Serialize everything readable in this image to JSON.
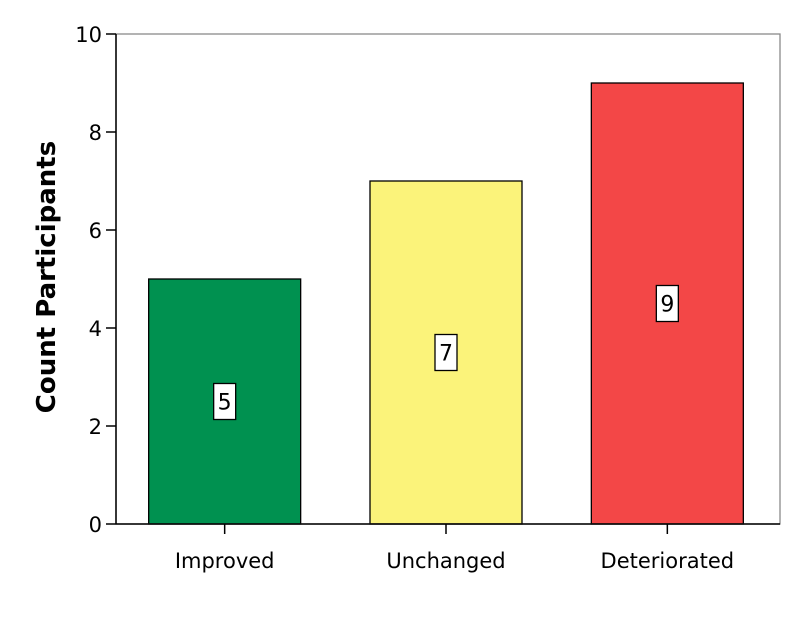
{
  "chart_data": {
    "type": "bar",
    "title": "",
    "xlabel": "",
    "ylabel": "Count Participants",
    "categories": [
      "Improved",
      "Unchanged",
      "Deteriorated"
    ],
    "values": [
      5,
      7,
      9
    ],
    "data_labels": [
      "5",
      "7",
      "9"
    ],
    "colors": [
      "#009150",
      "#fbf37a",
      "#f34747"
    ],
    "ylim": [
      0,
      10
    ],
    "yticks": [
      0,
      2,
      4,
      6,
      8,
      10
    ],
    "ytick_labels": [
      "0",
      "2",
      "4",
      "6",
      "8",
      "10"
    ],
    "grid": false,
    "legend": "none"
  }
}
